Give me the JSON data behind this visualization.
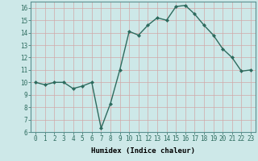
{
  "title": "",
  "xlabel": "Humidex (Indice chaleur)",
  "ylabel": "",
  "x": [
    0,
    1,
    2,
    3,
    4,
    5,
    6,
    7,
    8,
    9,
    10,
    11,
    12,
    13,
    14,
    15,
    16,
    17,
    18,
    19,
    20,
    21,
    22,
    23
  ],
  "y": [
    10,
    9.8,
    10,
    10,
    9.5,
    9.7,
    10,
    6.3,
    8.3,
    11,
    14.1,
    13.8,
    14.6,
    15.2,
    15.0,
    16.1,
    16.2,
    15.5,
    14.6,
    13.8,
    12.7,
    12.0,
    10.9,
    11.0
  ],
  "line_color": "#2d6b5e",
  "marker": "D",
  "marker_size": 2.0,
  "bg_color": "#cde8e8",
  "grid_color": "#b0d0d0",
  "ylim": [
    6,
    16.5
  ],
  "xlim": [
    -0.5,
    23.5
  ],
  "yticks": [
    6,
    7,
    8,
    9,
    10,
    11,
    12,
    13,
    14,
    15,
    16
  ],
  "xticks": [
    0,
    1,
    2,
    3,
    4,
    5,
    6,
    7,
    8,
    9,
    10,
    11,
    12,
    13,
    14,
    15,
    16,
    17,
    18,
    19,
    20,
    21,
    22,
    23
  ],
  "tick_fontsize": 5.5,
  "xlabel_fontsize": 6.5,
  "line_width": 1.0
}
